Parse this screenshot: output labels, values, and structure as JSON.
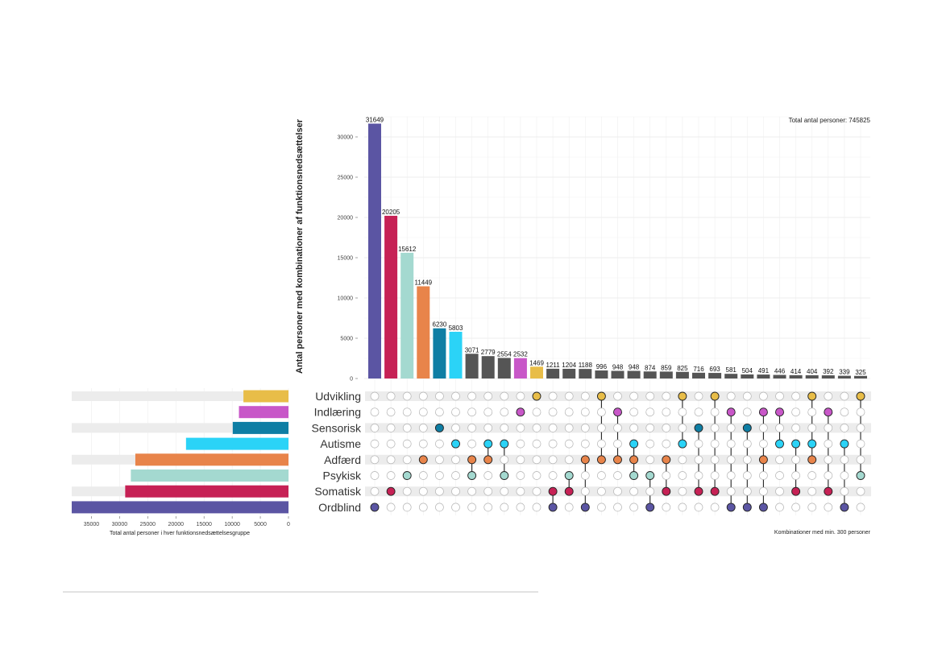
{
  "chart_data": {
    "type": "upset",
    "total_label": "Total antal personer: 745825",
    "y_axis_label": "Antal personer med kombinationer af funktionsnedsættelser",
    "y_ticks": [
      0,
      5000,
      10000,
      15000,
      20000,
      25000,
      30000
    ],
    "y_tick_labels": [
      "0",
      "5000",
      "10000",
      "15000",
      "20000",
      "25000",
      "30000"
    ],
    "ylim": [
      0,
      32500
    ],
    "x_caption": "Kombinationer med min. 300 personer",
    "set_size_xlabel": "Total antal personer i hver funktionsnedsættelsesgruppe",
    "set_size_ticks": [
      35000,
      30000,
      25000,
      20000,
      15000,
      10000,
      5000,
      0
    ],
    "set_size_tick_labels": [
      "35000",
      "30000",
      "25000",
      "20000",
      "15000",
      "10000",
      "5000",
      "0"
    ],
    "set_size_max": 38500,
    "sets": [
      {
        "name": "Udvikling",
        "size": 8000,
        "color": "#e8bd48"
      },
      {
        "name": "Indlæring",
        "size": 8800,
        "color": "#c857c8"
      },
      {
        "name": "Sensorisk",
        "size": 9900,
        "color": "#0e7ea4"
      },
      {
        "name": "Autisme",
        "size": 18200,
        "color": "#2bd3f7"
      },
      {
        "name": "Adfærd",
        "size": 27200,
        "color": "#e8844a"
      },
      {
        "name": "Psykisk",
        "size": 28000,
        "color": "#a4d9d0"
      },
      {
        "name": "Somatisk",
        "size": 29000,
        "color": "#c62155"
      },
      {
        "name": "Ordblind",
        "size": 38500,
        "color": "#5b55a3"
      }
    ],
    "intersections": [
      {
        "value": 31649,
        "label": "31649",
        "sets": [
          "Ordblind"
        ],
        "color": "#5b55a3"
      },
      {
        "value": 20205,
        "label": "20205",
        "sets": [
          "Somatisk"
        ],
        "color": "#c62155"
      },
      {
        "value": 15612,
        "label": "15612",
        "sets": [
          "Psykisk"
        ],
        "color": "#a4d9d0"
      },
      {
        "value": 11449,
        "label": "11449",
        "sets": [
          "Adfærd"
        ],
        "color": "#e8844a"
      },
      {
        "value": 6230,
        "label": "6230",
        "sets": [
          "Sensorisk"
        ],
        "color": "#0e7ea4"
      },
      {
        "value": 5803,
        "label": "5803",
        "sets": [
          "Autisme"
        ],
        "color": "#2bd3f7"
      },
      {
        "value": 3071,
        "label": "3071",
        "sets": [
          "Adfærd",
          "Psykisk"
        ],
        "color": "#555555"
      },
      {
        "value": 2779,
        "label": "2779",
        "sets": [
          "Autisme",
          "Adfærd"
        ],
        "color": "#555555"
      },
      {
        "value": 2554,
        "label": "2554",
        "sets": [
          "Autisme",
          "Psykisk"
        ],
        "color": "#555555"
      },
      {
        "value": 2532,
        "label": "2532",
        "sets": [
          "Indlæring"
        ],
        "color": "#c857c8"
      },
      {
        "value": 1469,
        "label": "1469",
        "sets": [
          "Udvikling"
        ],
        "color": "#e8bd48"
      },
      {
        "value": 1211,
        "label": "1211",
        "sets": [
          "Somatisk",
          "Ordblind"
        ],
        "color": "#555555"
      },
      {
        "value": 1204,
        "label": "1204",
        "sets": [
          "Psykisk",
          "Somatisk"
        ],
        "color": "#555555"
      },
      {
        "value": 1188,
        "label": "1188",
        "sets": [
          "Adfærd",
          "Ordblind"
        ],
        "color": "#555555"
      },
      {
        "value": 996,
        "label": "996",
        "sets": [
          "Udvikling",
          "Adfærd"
        ],
        "color": "#555555"
      },
      {
        "value": 948,
        "label": "948",
        "sets": [
          "Indlæring",
          "Adfærd"
        ],
        "color": "#555555"
      },
      {
        "value": 948,
        "label": "948",
        "sets": [
          "Autisme",
          "Adfærd",
          "Psykisk"
        ],
        "color": "#555555"
      },
      {
        "value": 874,
        "label": "874",
        "sets": [
          "Psykisk",
          "Ordblind"
        ],
        "color": "#555555"
      },
      {
        "value": 859,
        "label": "859",
        "sets": [
          "Adfærd",
          "Somatisk"
        ],
        "color": "#555555"
      },
      {
        "value": 825,
        "label": "825",
        "sets": [
          "Udvikling",
          "Autisme"
        ],
        "color": "#555555"
      },
      {
        "value": 716,
        "label": "716",
        "sets": [
          "Sensorisk",
          "Somatisk"
        ],
        "color": "#555555"
      },
      {
        "value": 693,
        "label": "693",
        "sets": [
          "Udvikling",
          "Somatisk"
        ],
        "color": "#555555"
      },
      {
        "value": 581,
        "label": "581",
        "sets": [
          "Indlæring",
          "Ordblind"
        ],
        "color": "#555555"
      },
      {
        "value": 504,
        "label": "504",
        "sets": [
          "Sensorisk",
          "Ordblind"
        ],
        "color": "#555555"
      },
      {
        "value": 491,
        "label": "491",
        "sets": [
          "Indlæring",
          "Adfærd",
          "Ordblind"
        ],
        "color": "#555555"
      },
      {
        "value": 446,
        "label": "446",
        "sets": [
          "Indlæring",
          "Autisme"
        ],
        "color": "#555555"
      },
      {
        "value": 414,
        "label": "414",
        "sets": [
          "Autisme",
          "Somatisk"
        ],
        "color": "#555555"
      },
      {
        "value": 404,
        "label": "404",
        "sets": [
          "Udvikling",
          "Autisme",
          "Adfærd"
        ],
        "color": "#555555"
      },
      {
        "value": 392,
        "label": "392",
        "sets": [
          "Indlæring",
          "Somatisk"
        ],
        "color": "#555555"
      },
      {
        "value": 339,
        "label": "339",
        "sets": [
          "Autisme",
          "Ordblind"
        ],
        "color": "#555555"
      },
      {
        "value": 325,
        "label": "325",
        "sets": [
          "Udvikling",
          "Psykisk"
        ],
        "color": "#555555"
      }
    ]
  }
}
